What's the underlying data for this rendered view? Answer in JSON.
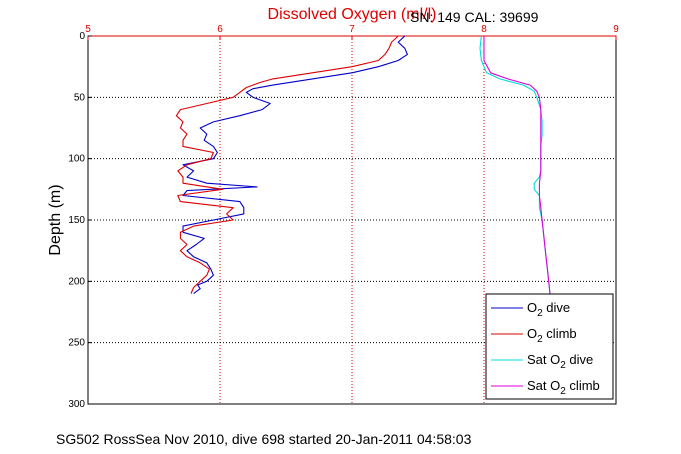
{
  "chart_data": {
    "type": "line",
    "title": "Dissolved Oxygen (ml/l)",
    "ylabel": "Depth (m)",
    "xlim": [
      5,
      9
    ],
    "ylim": [
      0,
      300
    ],
    "x_ticks": [
      "5",
      "6",
      "7",
      "8",
      "9"
    ],
    "y_ticks": [
      "0",
      "50",
      "100",
      "150",
      "200",
      "250",
      "300"
    ],
    "grid": true,
    "legend_position": "bottom-right",
    "series": [
      {
        "name": "O2 dive",
        "color": "#0000cc",
        "depth": [
          0,
          5,
          10,
          15,
          20,
          25,
          30,
          35,
          40,
          43,
          46,
          50,
          55,
          60,
          65,
          70,
          75,
          80,
          85,
          90,
          95,
          100,
          105,
          110,
          115,
          120,
          123,
          126,
          130,
          135,
          140,
          145,
          150,
          155,
          160,
          165,
          170,
          175,
          180,
          185,
          190,
          195,
          200,
          203,
          206,
          210
        ],
        "values": [
          7.4,
          7.35,
          7.4,
          7.42,
          7.35,
          7.2,
          7.0,
          6.7,
          6.4,
          6.25,
          6.2,
          6.25,
          6.38,
          6.32,
          6.15,
          5.95,
          5.85,
          5.9,
          5.88,
          5.95,
          5.98,
          5.95,
          5.72,
          5.8,
          5.75,
          5.9,
          6.28,
          5.75,
          5.72,
          6.15,
          6.18,
          6.18,
          5.95,
          5.72,
          5.72,
          5.88,
          5.82,
          5.75,
          5.8,
          5.9,
          5.93,
          5.95,
          5.9,
          5.83,
          5.85,
          5.8
        ]
      },
      {
        "name": "O2 climb",
        "color": "#dd0000",
        "depth": [
          0,
          5,
          10,
          15,
          20,
          25,
          30,
          35,
          38,
          42,
          46,
          50,
          55,
          60,
          65,
          70,
          75,
          80,
          85,
          90,
          95,
          100,
          105,
          110,
          115,
          120,
          125,
          130,
          135,
          140,
          145,
          150,
          155,
          160,
          165,
          170,
          175,
          180,
          185,
          190,
          195,
          200,
          205,
          210
        ],
        "values": [
          7.35,
          7.3,
          7.28,
          7.25,
          7.2,
          7.0,
          6.7,
          6.4,
          6.3,
          6.2,
          6.15,
          6.1,
          5.9,
          5.7,
          5.67,
          5.72,
          5.7,
          5.75,
          5.72,
          5.72,
          5.95,
          5.93,
          5.75,
          5.68,
          5.72,
          5.72,
          6.02,
          5.68,
          5.7,
          6.1,
          6.05,
          6.1,
          5.8,
          5.7,
          5.7,
          5.75,
          5.7,
          5.75,
          5.85,
          5.92,
          5.9,
          5.85,
          5.8,
          5.78
        ]
      },
      {
        "name": "Sat O2 dive",
        "color": "#00dddd",
        "depth": [
          0,
          10,
          20,
          30,
          35,
          40,
          45,
          50,
          60,
          70,
          80,
          90,
          100,
          110,
          115,
          120,
          125,
          130,
          140,
          150,
          160,
          170,
          180,
          190,
          200,
          210
        ],
        "values": [
          7.98,
          7.97,
          7.98,
          8.02,
          8.12,
          8.3,
          8.38,
          8.4,
          8.43,
          8.44,
          8.44,
          8.43,
          8.43,
          8.43,
          8.42,
          8.38,
          8.38,
          8.42,
          8.42,
          8.44,
          8.45,
          8.46,
          8.47,
          8.48,
          8.49,
          8.5
        ]
      },
      {
        "name": "Sat O2 climb",
        "color": "#dd00dd",
        "depth": [
          0,
          10,
          20,
          30,
          35,
          40,
          45,
          50,
          60,
          70,
          80,
          90,
          100,
          110,
          120,
          130,
          140,
          150,
          160,
          170,
          180,
          190,
          200,
          210
        ],
        "values": [
          8.0,
          8.0,
          8.0,
          8.05,
          8.18,
          8.35,
          8.4,
          8.42,
          8.43,
          8.43,
          8.43,
          8.43,
          8.43,
          8.43,
          8.42,
          8.42,
          8.43,
          8.44,
          8.45,
          8.46,
          8.47,
          8.48,
          8.49,
          8.5
        ]
      }
    ]
  },
  "legend": [
    {
      "main": "O",
      "sub": "2",
      "rest": " dive"
    },
    {
      "main": "O",
      "sub": "2",
      "rest": " climb"
    },
    {
      "main": "Sat O",
      "sub": "2",
      "rest": " dive"
    },
    {
      "main": "Sat O",
      "sub": "2",
      "rest": " climb"
    }
  ],
  "sn_cal": "SN: 149  CAL: 39699",
  "footer": "SG502 RossSea Nov 2010, dive 698 started 20-Jan-2011 04:58:03"
}
